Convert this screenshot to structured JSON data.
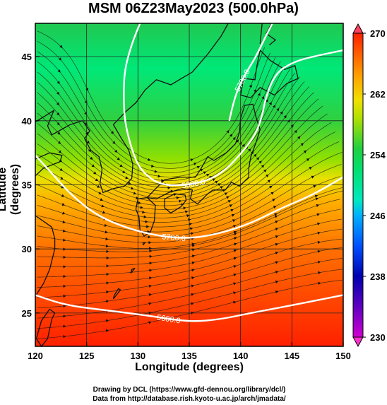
{
  "title": "MSM 06Z23May2023 (500.0hPa)",
  "xlabel": "Longitude (degrees)",
  "ylabel": "Latitude  (degrees)",
  "credits": {
    "line1": "Drawing by DCL (https://www.gfd-dennou.org/library/dcl/)",
    "line2": "Data from http://database.rish.kyoto-u.ac.jp/arch/jmadata/"
  },
  "map": {
    "lon_range": [
      120,
      150
    ],
    "lat_range": [
      22.4,
      47.6
    ],
    "lon_ticks": [
      120,
      125,
      130,
      135,
      140,
      145,
      150
    ],
    "lat_ticks": [
      25,
      30,
      35,
      40,
      45
    ],
    "grid": true
  },
  "colorbar": {
    "range": [
      230,
      270
    ],
    "ticks": [
      230,
      238,
      246,
      254,
      262,
      270
    ],
    "colors": [
      "#d000d0",
      "#0000b0",
      "#0060ff",
      "#00c8ff",
      "#00e890",
      "#20d040",
      "#a0e000",
      "#f0e000",
      "#ff9000",
      "#ff2000"
    ]
  },
  "contours": [
    {
      "label": "5600.0",
      "points": [
        [
          120,
          26.4
        ],
        [
          123,
          25.6
        ],
        [
          127,
          25.2
        ],
        [
          131,
          24.8
        ],
        [
          135,
          24.3
        ],
        [
          138,
          24.5
        ],
        [
          141,
          25.0
        ],
        [
          145,
          25.6
        ],
        [
          150,
          26.4
        ]
      ]
    },
    {
      "label": "5700.0",
      "points": [
        [
          120,
          37.3
        ],
        [
          121.5,
          36.0
        ],
        [
          123.5,
          34.2
        ],
        [
          126,
          32.6
        ],
        [
          129,
          31.6
        ],
        [
          132,
          31.0
        ],
        [
          135,
          30.8
        ],
        [
          138,
          31.2
        ],
        [
          141,
          32.0
        ],
        [
          144,
          33.2
        ],
        [
          147,
          34.2
        ],
        [
          150,
          35.6
        ]
      ]
    },
    {
      "label": "5800.0",
      "points": [
        [
          130.2,
          47.6
        ],
        [
          129.4,
          46
        ],
        [
          128.7,
          44
        ],
        [
          128.6,
          42
        ],
        [
          128.7,
          40
        ],
        [
          129.3,
          38
        ],
        [
          130.1,
          36.3
        ],
        [
          131.8,
          35.1
        ],
        [
          134,
          34.9
        ],
        [
          136.8,
          35.3
        ],
        [
          138.6,
          36.2
        ],
        [
          140,
          37.4
        ],
        [
          141.2,
          38.6
        ],
        [
          142,
          40
        ],
        [
          142.5,
          42
        ],
        [
          143.5,
          43.8
        ],
        [
          145.2,
          44.6
        ],
        [
          147,
          45
        ],
        [
          150,
          45.5
        ]
      ]
    },
    {
      "label": "5700.0",
      "points": [
        [
          138.9,
          40.0
        ],
        [
          139.3,
          41.4
        ],
        [
          139.8,
          42.6
        ],
        [
          140.5,
          43.7
        ],
        [
          141.5,
          45
        ],
        [
          142.4,
          46.5
        ],
        [
          143.1,
          47.6
        ]
      ]
    }
  ],
  "coast_labels_shown": false
}
